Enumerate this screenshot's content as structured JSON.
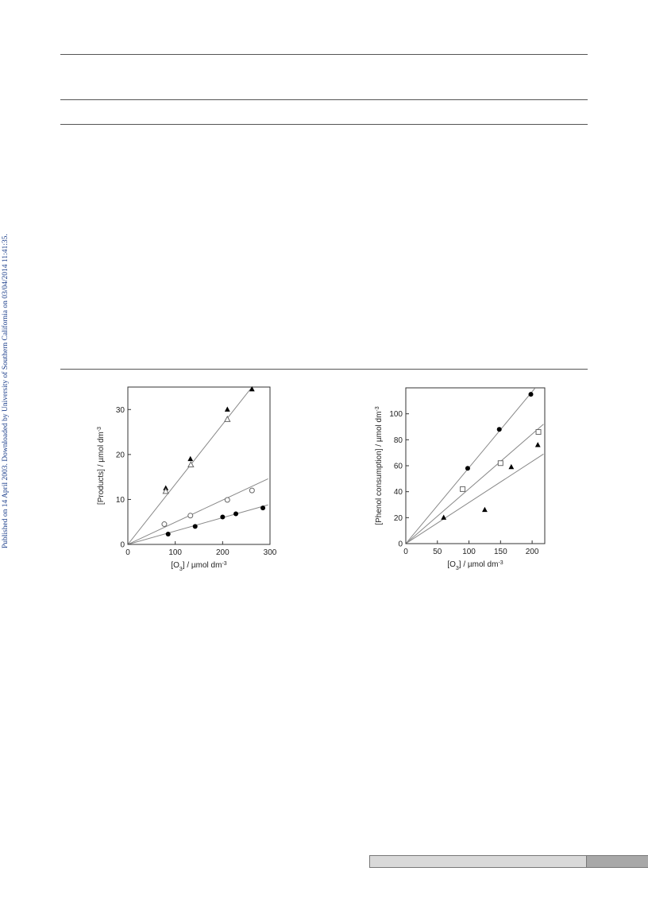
{
  "side_note": "Published on 14 April 2003. Downloaded by University of Southern California on 03/04/2014 11:41:35.",
  "chart_data": [
    {
      "type": "scatter",
      "xlabel": "[O3] / µmol dm-3",
      "ylabel": "[Products] / µmol dm-3",
      "xlim": [
        0,
        300
      ],
      "ylim": [
        0,
        35
      ],
      "xticks": [
        0,
        100,
        200,
        300
      ],
      "yticks": [
        0,
        10,
        20,
        30
      ],
      "series": [
        {
          "marker": "filled-triangle",
          "x": [
            80,
            132,
            210,
            262
          ],
          "y": [
            12.5,
            19,
            30,
            34.5
          ]
        },
        {
          "marker": "open-triangle",
          "x": [
            80,
            133,
            210
          ],
          "y": [
            11.8,
            17.7,
            27.8
          ]
        },
        {
          "marker": "open-circle",
          "x": [
            77,
            132,
            210,
            262
          ],
          "y": [
            4.5,
            6.4,
            9.9,
            12
          ]
        },
        {
          "marker": "filled-circle",
          "x": [
            85,
            142,
            200,
            228,
            285
          ],
          "y": [
            2.3,
            4,
            6.1,
            6.8,
            8.1
          ]
        }
      ],
      "fit_lines": [
        {
          "x": [
            0,
            262
          ],
          "y": [
            0,
            35
          ]
        },
        {
          "x": [
            0,
            296
          ],
          "y": [
            0,
            14.6
          ]
        },
        {
          "x": [
            0,
            296
          ],
          "y": [
            0,
            8.8
          ]
        }
      ]
    },
    {
      "type": "scatter",
      "xlabel": "[O3] / µmol dm-3",
      "ylabel": "[Phenol consumption] / µmol dm-3",
      "xlim": [
        0,
        220
      ],
      "ylim": [
        0,
        120
      ],
      "xticks": [
        0,
        50,
        100,
        150,
        200
      ],
      "yticks": [
        0,
        20,
        40,
        60,
        80,
        100
      ],
      "series": [
        {
          "marker": "filled-circle",
          "x": [
            98,
            148,
            198
          ],
          "y": [
            58,
            88,
            115
          ]
        },
        {
          "marker": "open-square",
          "x": [
            90,
            150,
            210
          ],
          "y": [
            42,
            62,
            86
          ]
        },
        {
          "marker": "filled-triangle",
          "x": [
            60,
            125,
            167,
            209
          ],
          "y": [
            20,
            26,
            59,
            76
          ]
        }
      ],
      "fit_lines": [
        {
          "x": [
            0,
            205
          ],
          "y": [
            0,
            120
          ]
        },
        {
          "x": [
            0,
            218
          ],
          "y": [
            0,
            92
          ]
        },
        {
          "x": [
            0,
            218
          ],
          "y": [
            0,
            69
          ]
        }
      ]
    }
  ]
}
